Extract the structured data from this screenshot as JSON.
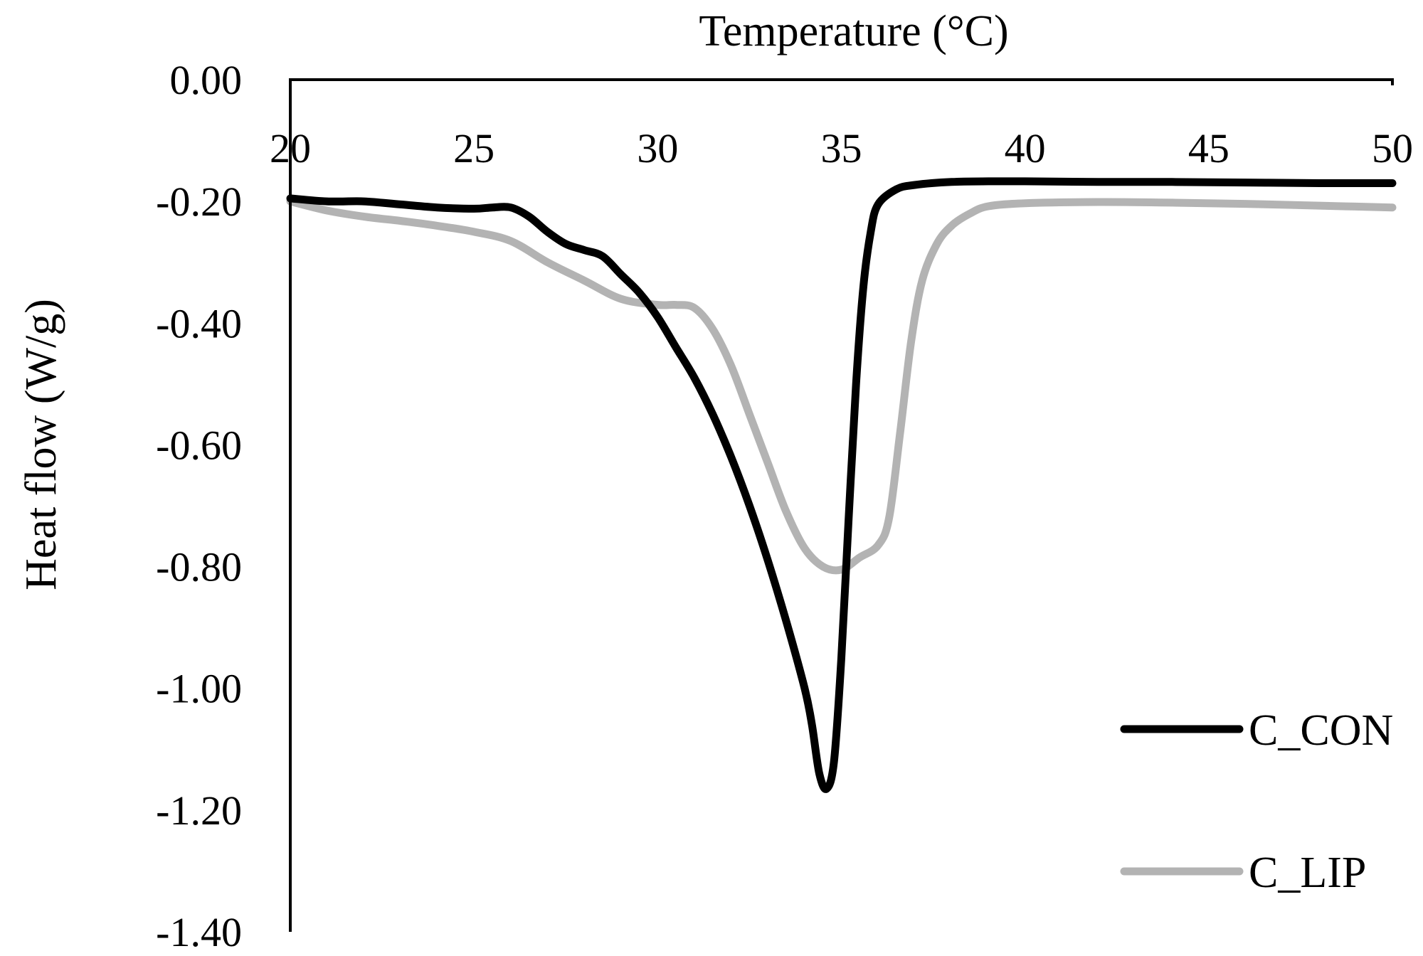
{
  "chart_data": {
    "type": "line",
    "title": "",
    "xlabel": "Temperature (°C)",
    "ylabel": "Heat flow (W/g)",
    "xlim": [
      20,
      50
    ],
    "ylim": [
      -1.4,
      0.0
    ],
    "x_ticks": [
      "20",
      "25",
      "30",
      "35",
      "40",
      "45",
      "50"
    ],
    "y_ticks": [
      "0.00",
      "-0.20",
      "-0.40",
      "-0.60",
      "-0.80",
      "-1.00",
      "-1.20",
      "-1.40"
    ],
    "x_tick_values": [
      20,
      25,
      30,
      35,
      40,
      45,
      50
    ],
    "y_tick_values": [
      0.0,
      -0.2,
      -0.4,
      -0.6,
      -0.8,
      -1.0,
      -1.2,
      -1.4
    ],
    "legend_position": "bottom-right",
    "series": [
      {
        "name": "C_CON",
        "color": "#000000",
        "x": [
          20,
          21,
          22,
          23,
          24,
          25,
          25.5,
          26,
          26.5,
          27,
          27.5,
          28,
          28.5,
          29,
          29.5,
          30,
          30.5,
          31,
          31.5,
          32,
          32.5,
          33,
          33.5,
          34,
          34.2,
          34.4,
          34.6,
          34.8,
          35.0,
          35.2,
          35.4,
          35.6,
          35.8,
          36,
          36.5,
          37,
          38,
          39,
          40,
          42,
          44,
          46,
          48,
          50
        ],
        "values": [
          -0.195,
          -0.2,
          -0.2,
          -0.205,
          -0.21,
          -0.212,
          -0.21,
          -0.21,
          -0.225,
          -0.25,
          -0.27,
          -0.28,
          -0.29,
          -0.32,
          -0.35,
          -0.39,
          -0.44,
          -0.49,
          -0.55,
          -0.62,
          -0.7,
          -0.79,
          -0.89,
          -1.0,
          -1.06,
          -1.14,
          -1.165,
          -1.12,
          -0.95,
          -0.72,
          -0.5,
          -0.34,
          -0.25,
          -0.205,
          -0.18,
          -0.173,
          -0.168,
          -0.167,
          -0.167,
          -0.168,
          -0.168,
          -0.169,
          -0.17,
          -0.17
        ]
      },
      {
        "name": "C_LIP",
        "color": "#b3b3b3",
        "x": [
          20,
          21,
          22,
          23,
          24,
          25,
          26,
          27,
          28,
          29,
          30,
          30.5,
          31,
          31.5,
          32,
          32.5,
          33,
          33.5,
          34,
          34.5,
          35,
          35.5,
          36,
          36.3,
          36.6,
          36.9,
          37.2,
          37.6,
          38,
          38.5,
          39,
          40,
          42,
          44,
          46,
          48,
          50
        ],
        "values": [
          -0.2,
          -0.215,
          -0.225,
          -0.232,
          -0.24,
          -0.25,
          -0.265,
          -0.3,
          -0.33,
          -0.36,
          -0.37,
          -0.37,
          -0.375,
          -0.41,
          -0.47,
          -0.55,
          -0.63,
          -0.71,
          -0.77,
          -0.8,
          -0.805,
          -0.785,
          -0.765,
          -0.72,
          -0.58,
          -0.43,
          -0.33,
          -0.27,
          -0.24,
          -0.22,
          -0.208,
          -0.203,
          -0.201,
          -0.202,
          -0.204,
          -0.207,
          -0.21
        ]
      }
    ]
  }
}
